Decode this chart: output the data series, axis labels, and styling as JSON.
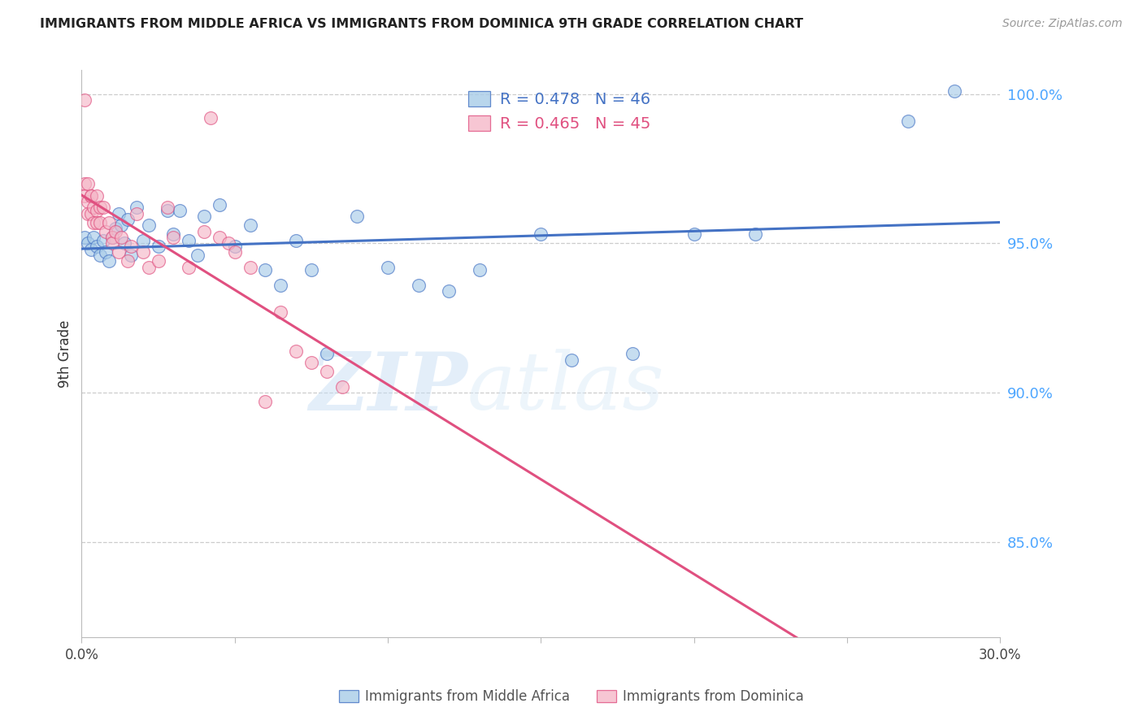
{
  "title": "IMMIGRANTS FROM MIDDLE AFRICA VS IMMIGRANTS FROM DOMINICA 9TH GRADE CORRELATION CHART",
  "source": "Source: ZipAtlas.com",
  "ylabel": "9th Grade",
  "ylabel_right_ticks": [
    85.0,
    90.0,
    95.0,
    100.0
  ],
  "xmin": 0.0,
  "xmax": 0.3,
  "ymin": 0.818,
  "ymax": 1.008,
  "legend_blue_R": "R = 0.478",
  "legend_blue_N": "N = 46",
  "legend_pink_R": "R = 0.465",
  "legend_pink_N": "N = 45",
  "blue_color": "#a8cce8",
  "pink_color": "#f5b8c8",
  "trend_blue_color": "#4472c4",
  "trend_pink_color": "#e05080",
  "watermark_zip": "ZIP",
  "watermark_atlas": "atlas",
  "blue_scatter_x": [
    0.001,
    0.002,
    0.003,
    0.004,
    0.005,
    0.006,
    0.007,
    0.008,
    0.009,
    0.01,
    0.011,
    0.012,
    0.013,
    0.014,
    0.015,
    0.016,
    0.018,
    0.02,
    0.022,
    0.025,
    0.028,
    0.03,
    0.032,
    0.035,
    0.038,
    0.04,
    0.045,
    0.05,
    0.055,
    0.06,
    0.065,
    0.07,
    0.075,
    0.08,
    0.09,
    0.1,
    0.11,
    0.12,
    0.13,
    0.15,
    0.16,
    0.18,
    0.2,
    0.22,
    0.27,
    0.285
  ],
  "blue_scatter_y": [
    0.952,
    0.95,
    0.948,
    0.952,
    0.949,
    0.946,
    0.951,
    0.947,
    0.944,
    0.952,
    0.955,
    0.96,
    0.956,
    0.95,
    0.958,
    0.946,
    0.962,
    0.951,
    0.956,
    0.949,
    0.961,
    0.953,
    0.961,
    0.951,
    0.946,
    0.959,
    0.963,
    0.949,
    0.956,
    0.941,
    0.936,
    0.951,
    0.941,
    0.913,
    0.959,
    0.942,
    0.936,
    0.934,
    0.941,
    0.953,
    0.911,
    0.913,
    0.953,
    0.953,
    0.991,
    1.001
  ],
  "pink_scatter_x": [
    0.001,
    0.001,
    0.001,
    0.002,
    0.002,
    0.002,
    0.003,
    0.003,
    0.003,
    0.004,
    0.004,
    0.005,
    0.005,
    0.005,
    0.006,
    0.006,
    0.007,
    0.008,
    0.009,
    0.01,
    0.01,
    0.011,
    0.012,
    0.013,
    0.015,
    0.016,
    0.018,
    0.02,
    0.022,
    0.025,
    0.028,
    0.03,
    0.035,
    0.04,
    0.042,
    0.045,
    0.048,
    0.05,
    0.055,
    0.06,
    0.065,
    0.07,
    0.075,
    0.08,
    0.085
  ],
  "pink_scatter_y": [
    0.998,
    0.97,
    0.966,
    0.97,
    0.964,
    0.96,
    0.966,
    0.96,
    0.966,
    0.962,
    0.957,
    0.966,
    0.961,
    0.957,
    0.962,
    0.957,
    0.962,
    0.954,
    0.957,
    0.952,
    0.95,
    0.954,
    0.947,
    0.952,
    0.944,
    0.949,
    0.96,
    0.947,
    0.942,
    0.944,
    0.962,
    0.952,
    0.942,
    0.954,
    0.992,
    0.952,
    0.95,
    0.947,
    0.942,
    0.897,
    0.927,
    0.914,
    0.91,
    0.907,
    0.902
  ]
}
